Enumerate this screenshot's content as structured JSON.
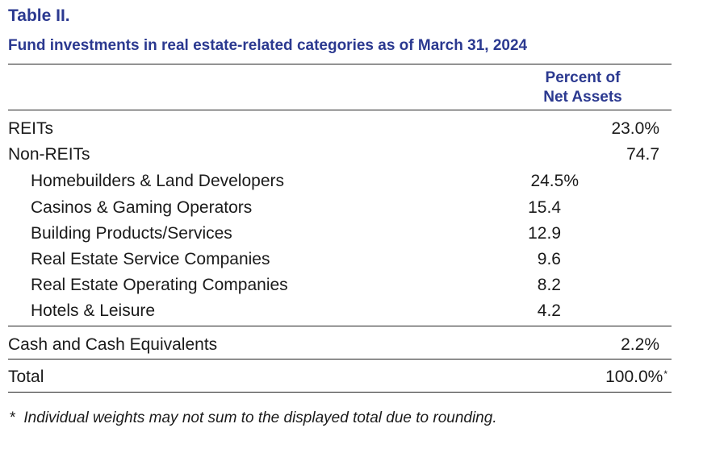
{
  "header": {
    "table_label": "Table II.",
    "title": "Fund investments in real estate-related categories as of March 31, 2024"
  },
  "columns": {
    "header_line1": "Percent of",
    "header_line2": "Net Assets"
  },
  "rows": {
    "reits": {
      "label": "REITs",
      "value": "23.0%"
    },
    "non_reits": {
      "label": "Non-REITs",
      "value": "74.7"
    },
    "sub": [
      {
        "label": "Homebuilders & Land Developers",
        "value": "24.5%"
      },
      {
        "label": "Casinos & Gaming Operators",
        "value": "15.4"
      },
      {
        "label": "Building Products/Services",
        "value": "12.9"
      },
      {
        "label": "Real Estate Service Companies",
        "value": "9.6"
      },
      {
        "label": "Real Estate Operating Companies",
        "value": "8.2"
      },
      {
        "label": "Hotels & Leisure",
        "value": "4.2"
      }
    ],
    "cash": {
      "label": "Cash and Cash Equivalents",
      "value": "2.2%"
    },
    "total": {
      "label": "Total",
      "value": "100.0%",
      "mark": "*"
    }
  },
  "footnote": {
    "marker": "*",
    "text": "Individual weights may not sum to the displayed total due to rounding."
  },
  "colors": {
    "heading": "#2b3990",
    "text": "#1a1a1a",
    "rule": "#222222"
  }
}
